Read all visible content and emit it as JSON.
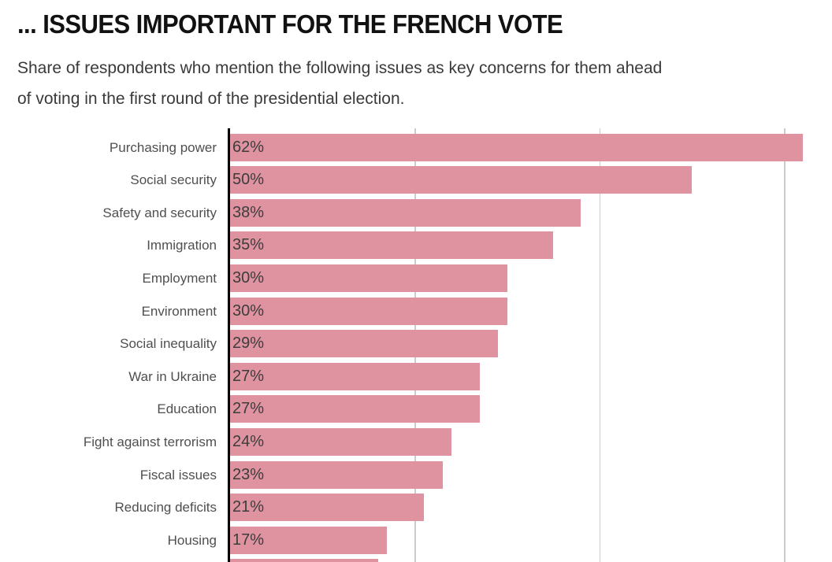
{
  "header": {
    "title": "... ISSUES IMPORTANT FOR THE FRENCH VOTE",
    "subtitle_lines": [
      "Share of respondents who mention the following issues as key concerns for them ahead",
      "of voting in the first round of the presidential election."
    ]
  },
  "chart_data": {
    "type": "bar",
    "orientation": "horizontal",
    "title": "... ISSUES IMPORTANT FOR THE FRENCH VOTE",
    "subtitle": "Share of respondents who mention the following issues as key concerns for them ahead of voting in the first round of the presidential election.",
    "categories": [
      "Purchasing power",
      "Social security",
      "Safety and security",
      "Immigration",
      "Employment",
      "Environment",
      "Social inequality",
      "War in Ukraine",
      "Education",
      "Fight against terrorism",
      "Fiscal issues",
      "Reducing deficits",
      "Housing"
    ],
    "values": [
      62,
      50,
      38,
      35,
      30,
      30,
      29,
      27,
      27,
      24,
      23,
      21,
      17
    ],
    "value_suffix": "%",
    "value_labels": [
      "62%",
      "50%",
      "38%",
      "35%",
      "30%",
      "30%",
      "29%",
      "27%",
      "27%",
      "24%",
      "23%",
      "21%",
      "17%"
    ],
    "partial_last_bar_value": 16,
    "xlabel": "",
    "ylabel": "",
    "xlim": [
      0,
      65
    ],
    "gridlines": [
      20,
      40,
      60
    ],
    "grid_on": true,
    "legend": "none",
    "colors": {
      "bar": "#df93a1",
      "axis": "#000000",
      "gridline": "#cccccc",
      "value_text": "#3c3c3c",
      "label_text": "#4f4f4f",
      "title_text": "#111111",
      "subtitle_text": "#3a3a3a"
    }
  }
}
